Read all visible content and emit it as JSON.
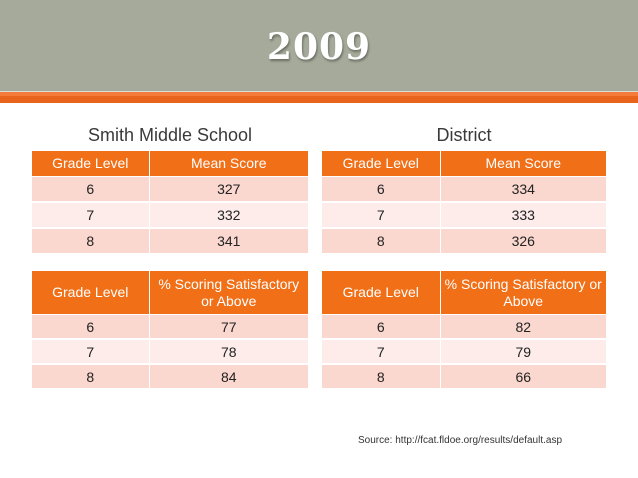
{
  "title": "2009",
  "school_heading": "Smith Middle School",
  "district_heading": "District",
  "mean_score_headers": [
    "Grade Level",
    "Mean Score"
  ],
  "satisfactory_headers": [
    "Grade Level",
    "% Scoring Satisfactory or Above"
  ],
  "school_mean": [
    {
      "grade": "6",
      "value": "327"
    },
    {
      "grade": "7",
      "value": "332"
    },
    {
      "grade": "8",
      "value": "341"
    }
  ],
  "district_mean": [
    {
      "grade": "6",
      "value": "334"
    },
    {
      "grade": "7",
      "value": "333"
    },
    {
      "grade": "8",
      "value": "326"
    }
  ],
  "school_satisfactory": [
    {
      "grade": "6",
      "value": "77"
    },
    {
      "grade": "7",
      "value": "78"
    },
    {
      "grade": "8",
      "value": "84"
    }
  ],
  "district_satisfactory": [
    {
      "grade": "6",
      "value": "82"
    },
    {
      "grade": "7",
      "value": "79"
    },
    {
      "grade": "8",
      "value": "66"
    }
  ],
  "source": "Source: http://fcat.fldoe.org/results/default.asp",
  "colors": {
    "banner": "#a5aa9a",
    "accent": "#f06f17",
    "row_odd": "#fbd8cf",
    "row_even": "#fdecea"
  }
}
